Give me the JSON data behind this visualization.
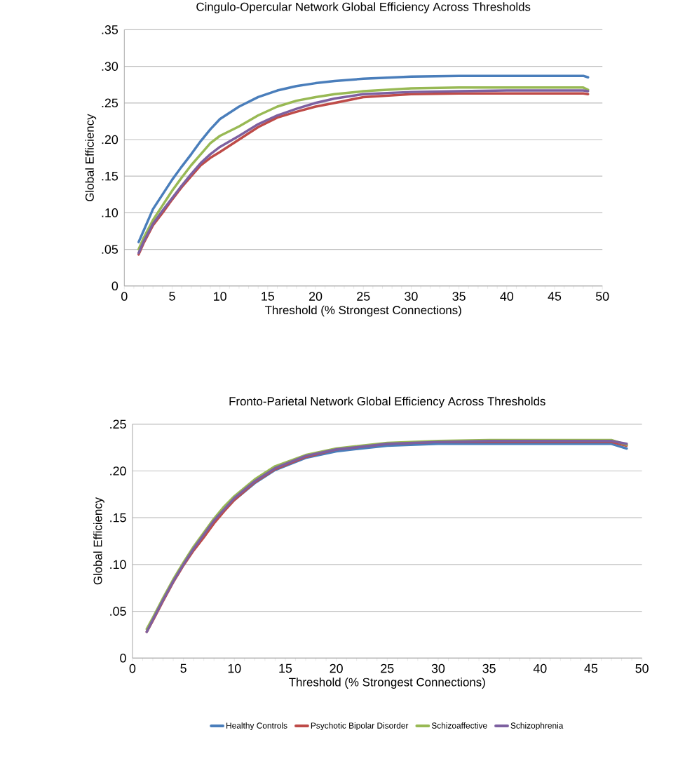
{
  "chart_data": [
    {
      "type": "line",
      "title": "Cingulo-Opercular Network Global Efficiency Across Thresholds",
      "xlabel": "Threshold (% Strongest Connections)",
      "ylabel": "Global Efficiency",
      "grid": "y",
      "x": [
        1.5,
        2,
        3,
        4,
        5,
        6,
        7,
        8,
        9,
        10,
        12,
        14,
        16,
        18,
        20,
        22,
        25,
        30,
        35,
        40,
        45,
        48,
        48.5
      ],
      "series": [
        {
          "color": "#4a7ebb",
          "values": [
            0.06,
            0.075,
            0.105,
            0.125,
            0.145,
            0.163,
            0.18,
            0.198,
            0.214,
            0.228,
            0.245,
            0.258,
            0.267,
            0.273,
            0.277,
            0.28,
            0.283,
            0.286,
            0.287,
            0.287,
            0.287,
            0.287,
            0.285
          ]
        },
        {
          "color": "#be4b48",
          "values": [
            0.043,
            0.058,
            0.083,
            0.1,
            0.118,
            0.135,
            0.15,
            0.165,
            0.175,
            0.183,
            0.2,
            0.217,
            0.23,
            0.238,
            0.245,
            0.25,
            0.258,
            0.262,
            0.263,
            0.263,
            0.263,
            0.263,
            0.262
          ]
        },
        {
          "color": "#98b954",
          "values": [
            0.05,
            0.065,
            0.09,
            0.11,
            0.13,
            0.148,
            0.165,
            0.18,
            0.195,
            0.205,
            0.218,
            0.233,
            0.245,
            0.253,
            0.258,
            0.262,
            0.266,
            0.27,
            0.271,
            0.271,
            0.271,
            0.271,
            0.268
          ]
        },
        {
          "color": "#7d60a0",
          "values": [
            0.045,
            0.06,
            0.085,
            0.103,
            0.12,
            0.137,
            0.153,
            0.168,
            0.18,
            0.19,
            0.205,
            0.221,
            0.233,
            0.242,
            0.25,
            0.256,
            0.262,
            0.265,
            0.266,
            0.267,
            0.267,
            0.267,
            0.266
          ]
        }
      ],
      "xlim": [
        0,
        50
      ],
      "ylim": [
        0,
        0.35
      ],
      "xticks": [
        0,
        5,
        10,
        15,
        20,
        25,
        30,
        35,
        40,
        45,
        50
      ],
      "yticks": [
        0,
        {
          "value": 0.05,
          "label": ".05"
        },
        {
          "value": 0.1,
          "label": ".10"
        },
        {
          "value": 0.15,
          "label": ".15"
        },
        {
          "value": 0.2,
          "label": ".20"
        },
        {
          "value": 0.25,
          "label": ".25"
        },
        {
          "value": 0.3,
          "label": ".30"
        },
        {
          "value": 0.35,
          "label": ".35"
        }
      ]
    },
    {
      "type": "line",
      "title": "Fronto-Parietal Network Global Efficiency Across Thresholds",
      "xlabel": "Threshold (% Strongest Connections)",
      "ylabel": "Global Efficiency",
      "grid": "y",
      "legend": "bottom",
      "x": [
        1.4,
        2,
        3,
        4,
        5,
        6,
        7,
        8,
        9,
        10,
        12,
        14,
        17,
        20,
        25,
        30,
        35,
        40,
        45,
        47,
        48.5
      ],
      "series": [
        {
          "name": "Healthy Controls",
          "color": "#4a7ebb",
          "values": [
            null,
            null,
            null,
            null,
            null,
            null,
            null,
            null,
            0.158,
            0.169,
            0.187,
            0.201,
            0.214,
            0.221,
            0.227,
            0.229,
            0.229,
            0.229,
            0.229,
            0.229,
            0.224
          ]
        },
        {
          "name": "Psychotic Bipolar Disorder",
          "color": "#be4b48",
          "values": [
            0.028,
            0.04,
            0.061,
            0.081,
            0.099,
            0.115,
            0.129,
            0.144,
            0.157,
            0.169,
            0.188,
            0.202,
            0.215,
            0.223,
            0.229,
            0.231,
            0.231,
            0.231,
            0.231,
            0.231,
            0.227
          ]
        },
        {
          "name": "Schizoaffective",
          "color": "#98b954",
          "values": [
            0.031,
            0.043,
            0.064,
            0.084,
            0.102,
            0.119,
            0.134,
            0.149,
            0.162,
            0.173,
            0.191,
            0.205,
            0.217,
            0.224,
            0.23,
            0.232,
            0.233,
            0.233,
            0.233,
            0.233,
            0.228
          ]
        },
        {
          "name": "Schizophrenia",
          "color": "#7d60a0",
          "values": [
            0.028,
            0.041,
            0.062,
            0.082,
            0.1,
            0.117,
            0.132,
            0.147,
            0.159,
            0.171,
            0.189,
            0.203,
            0.216,
            0.223,
            0.229,
            0.231,
            0.232,
            0.232,
            0.232,
            0.232,
            0.229
          ]
        }
      ],
      "xlim": [
        0,
        50
      ],
      "ylim": [
        0,
        0.25
      ],
      "xticks": [
        0,
        5,
        10,
        15,
        20,
        25,
        30,
        35,
        40,
        45,
        50
      ],
      "yticks": [
        0,
        {
          "value": 0.05,
          "label": ".05"
        },
        {
          "value": 0.1,
          "label": ".10"
        },
        {
          "value": 0.15,
          "label": ".15"
        },
        {
          "value": 0.2,
          "label": ".20"
        },
        {
          "value": 0.25,
          "label": ".25"
        }
      ]
    }
  ]
}
